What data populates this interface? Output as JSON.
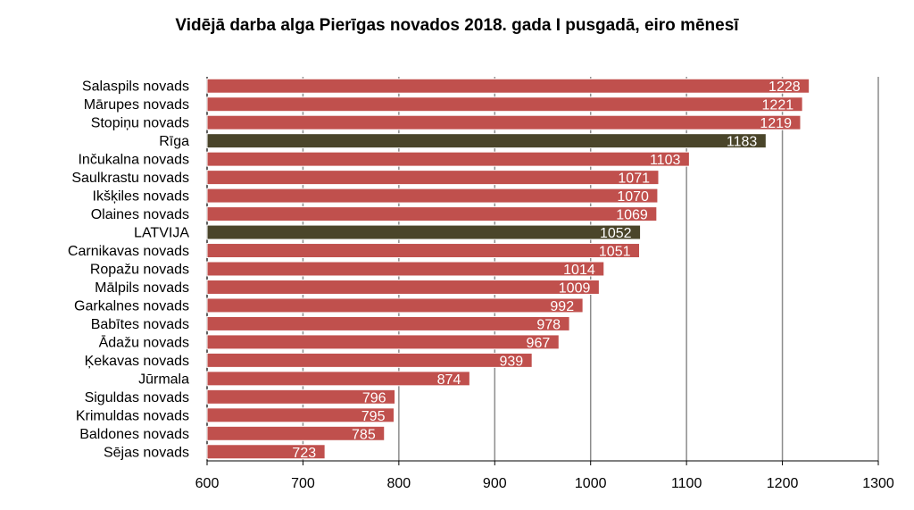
{
  "chart_data": {
    "type": "bar",
    "orientation": "horizontal",
    "title": "Vidējā darba alga Pierīgas novados 2018. gada I pusgadā, eiro mēnesī",
    "xlabel": "",
    "ylabel": "",
    "xlim": [
      600,
      1300
    ],
    "xticks": [
      "600",
      "700",
      "800",
      "900",
      "1000",
      "1100",
      "1200",
      "1300"
    ],
    "grid": true,
    "legend": "none",
    "colors": {
      "default": "#C0504D",
      "highlight": "#4A452A"
    },
    "categories": [
      "Salaspils novads",
      "Mārupes novads",
      "Stopiņu novads",
      "Rīga",
      "Inčukalna novads",
      "Saulkrastu novads",
      "Ikšķiles novads",
      "Olaines novads",
      "LATVIJA",
      "Carnikavas novads",
      "Ropažu novads",
      "Mālpils novads",
      "Garkalnes novads",
      "Babītes novads",
      "Ādažu novads",
      "Ķekavas novads",
      "Jūrmala",
      "Siguldas novads",
      "Krimuldas novads",
      "Baldones novads",
      "Sējas novads"
    ],
    "values": [
      1228,
      1221,
      1219,
      1183,
      1103,
      1071,
      1070,
      1069,
      1052,
      1051,
      1014,
      1009,
      992,
      978,
      967,
      939,
      874,
      796,
      795,
      785,
      723
    ],
    "highlighted": [
      "Rīga",
      "LATVIJA"
    ]
  }
}
